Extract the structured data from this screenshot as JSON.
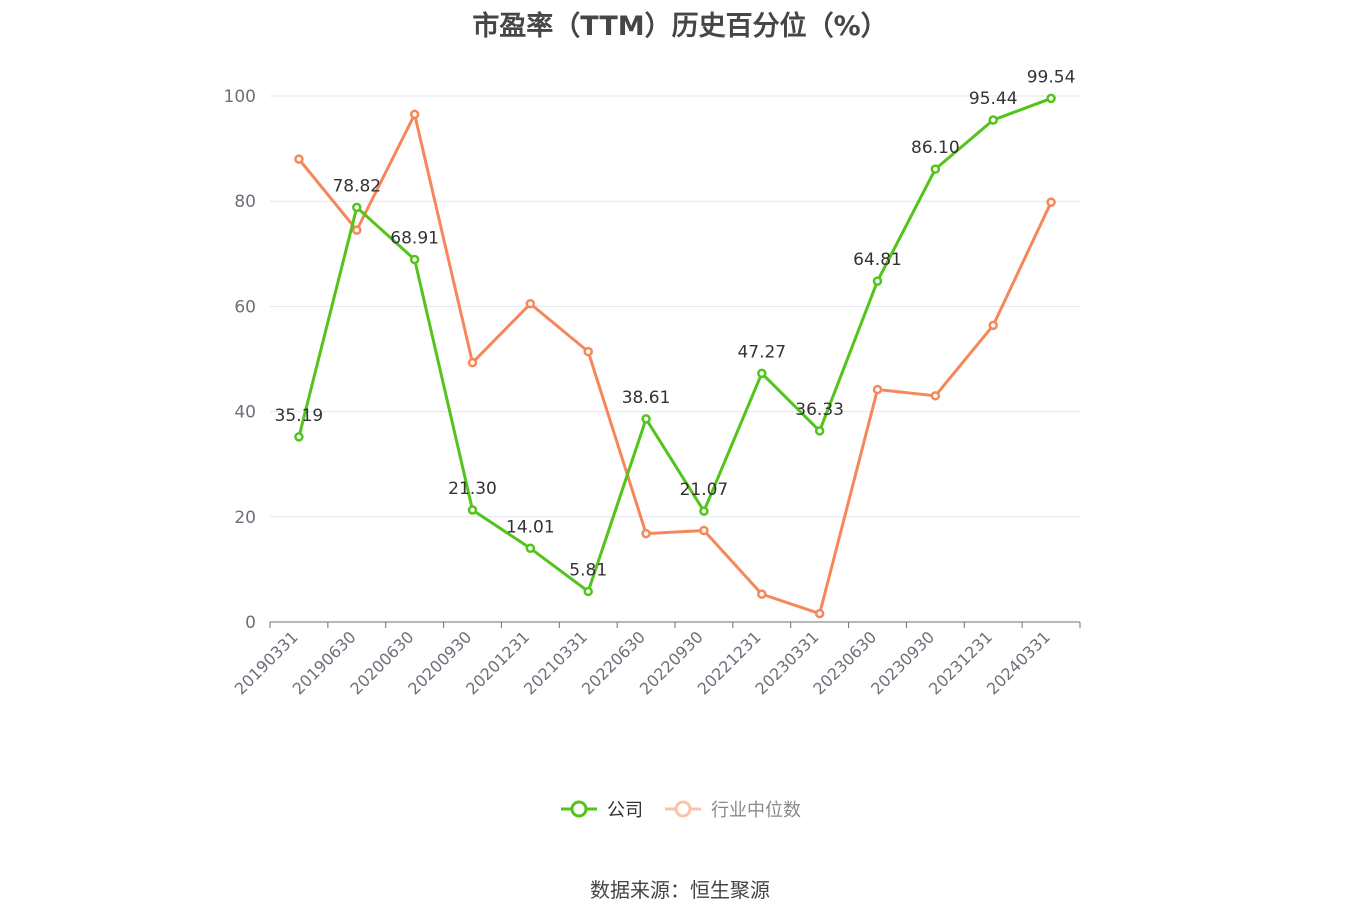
{
  "chart_data": {
    "type": "line",
    "title": "市盈率（TTM）历史百分位（%）",
    "categories": [
      "20190331",
      "20190630",
      "20200630",
      "20200930",
      "20201231",
      "20210331",
      "20220630",
      "20220930",
      "20221231",
      "20230331",
      "20230630",
      "20230930",
      "20231231",
      "20240331"
    ],
    "series": [
      {
        "name": "公司",
        "color": "#52c41a",
        "values": [
          35.19,
          78.82,
          68.91,
          21.3,
          14.01,
          5.81,
          38.61,
          21.07,
          47.27,
          36.33,
          64.81,
          86.1,
          95.44,
          99.54
        ],
        "labels": [
          "35.19",
          "78.82",
          "68.91",
          "21.30",
          "14.01",
          "5.81",
          "38.61",
          "21.07",
          "47.27",
          "36.33",
          "64.81",
          "86.10",
          "95.44",
          "99.54"
        ]
      },
      {
        "name": "行业中位数",
        "color": "#f5875a",
        "values": [
          88.0,
          74.5,
          96.5,
          49.3,
          60.5,
          51.4,
          16.8,
          17.4,
          5.3,
          1.6,
          44.2,
          43.0,
          56.4,
          79.8
        ]
      }
    ],
    "yticks": [
      "0",
      "20",
      "40",
      "60",
      "80",
      "100"
    ],
    "ylim": [
      0,
      100
    ],
    "grid": true,
    "legend_position": "bottom"
  },
  "source": "数据来源：恒生聚源"
}
